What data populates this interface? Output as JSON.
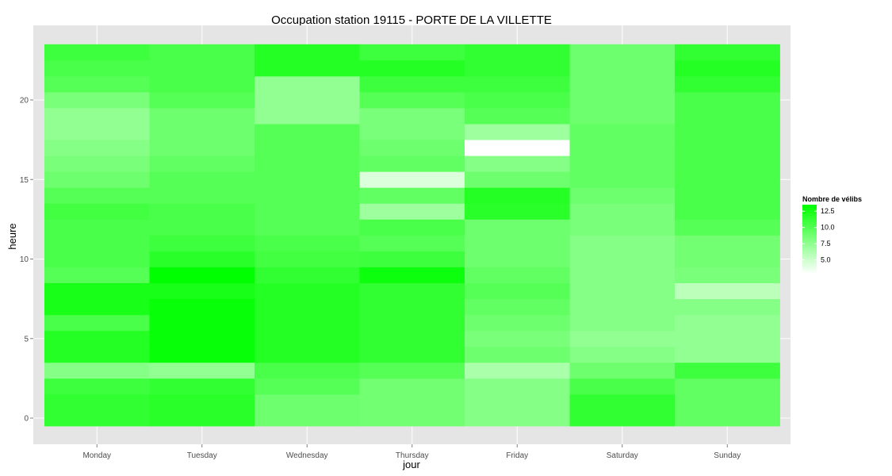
{
  "chart_data": {
    "type": "heatmap",
    "title": "Occupation station 19115 - PORTE DE LA VILLETTE",
    "xlabel": "jour",
    "ylabel": "heure",
    "x_categories": [
      "Monday",
      "Tuesday",
      "Wednesday",
      "Thursday",
      "Friday",
      "Saturday",
      "Sunday"
    ],
    "y_range": [
      0,
      23
    ],
    "y_ticks": [
      0,
      5,
      10,
      15,
      20
    ],
    "legend": {
      "title": "Nombre de vélibs",
      "ticks": [
        "12.5",
        "10.0",
        "7.5",
        "5.0"
      ],
      "tick_values": [
        12.5,
        10.0,
        7.5,
        5.0
      ],
      "min": 3.0,
      "max": 13.5,
      "position": "right"
    },
    "color_low": "#ffffff",
    "color_high": "#00ff00",
    "panel_background": "#e5e5e5",
    "grid": true,
    "values_by_hour": [
      [
        11.5,
        11.8,
        9.0,
        8.8,
        8.0,
        11.5,
        9.5
      ],
      [
        11.5,
        11.8,
        9.0,
        8.8,
        8.0,
        11.5,
        9.5
      ],
      [
        11.0,
        11.5,
        10.0,
        8.8,
        8.0,
        10.5,
        9.5
      ],
      [
        8.0,
        7.5,
        10.5,
        10.0,
        6.5,
        9.0,
        11.0
      ],
      [
        12.0,
        13.2,
        12.0,
        11.5,
        9.0,
        8.0,
        7.5
      ],
      [
        12.0,
        13.2,
        12.0,
        11.5,
        8.5,
        7.5,
        7.5
      ],
      [
        10.5,
        13.2,
        12.0,
        11.5,
        9.0,
        8.0,
        7.5
      ],
      [
        12.5,
        13.2,
        12.0,
        11.5,
        9.5,
        8.0,
        8.0
      ],
      [
        12.5,
        12.5,
        12.0,
        11.5,
        10.0,
        8.0,
        5.8
      ],
      [
        10.0,
        13.5,
        11.5,
        13.0,
        9.5,
        8.0,
        8.5
      ],
      [
        10.5,
        11.8,
        10.8,
        11.0,
        9.0,
        8.0,
        8.8
      ],
      [
        10.5,
        11.0,
        10.5,
        10.0,
        9.0,
        8.0,
        8.8
      ],
      [
        10.5,
        10.5,
        10.0,
        10.5,
        9.0,
        8.5,
        10.0
      ],
      [
        10.8,
        10.5,
        10.0,
        7.0,
        11.8,
        8.5,
        10.5
      ],
      [
        10.0,
        10.0,
        10.0,
        9.5,
        12.0,
        9.0,
        10.5
      ],
      [
        9.0,
        10.0,
        10.0,
        4.5,
        9.0,
        9.5,
        10.5
      ],
      [
        8.5,
        9.5,
        10.0,
        9.5,
        8.0,
        9.5,
        10.5
      ],
      [
        8.0,
        9.0,
        10.0,
        9.0,
        3.0,
        9.5,
        10.5
      ],
      [
        7.5,
        9.0,
        10.0,
        8.5,
        7.0,
        9.5,
        10.5
      ],
      [
        7.5,
        9.0,
        7.5,
        8.5,
        10.0,
        9.0,
        10.5
      ],
      [
        8.5,
        10.0,
        7.5,
        10.0,
        10.5,
        9.0,
        10.5
      ],
      [
        10.0,
        10.5,
        7.5,
        11.0,
        11.0,
        9.0,
        11.5
      ],
      [
        10.5,
        10.5,
        12.0,
        12.0,
        11.5,
        9.0,
        12.0
      ],
      [
        11.0,
        10.5,
        12.0,
        11.0,
        11.5,
        9.0,
        11.5
      ]
    ]
  }
}
